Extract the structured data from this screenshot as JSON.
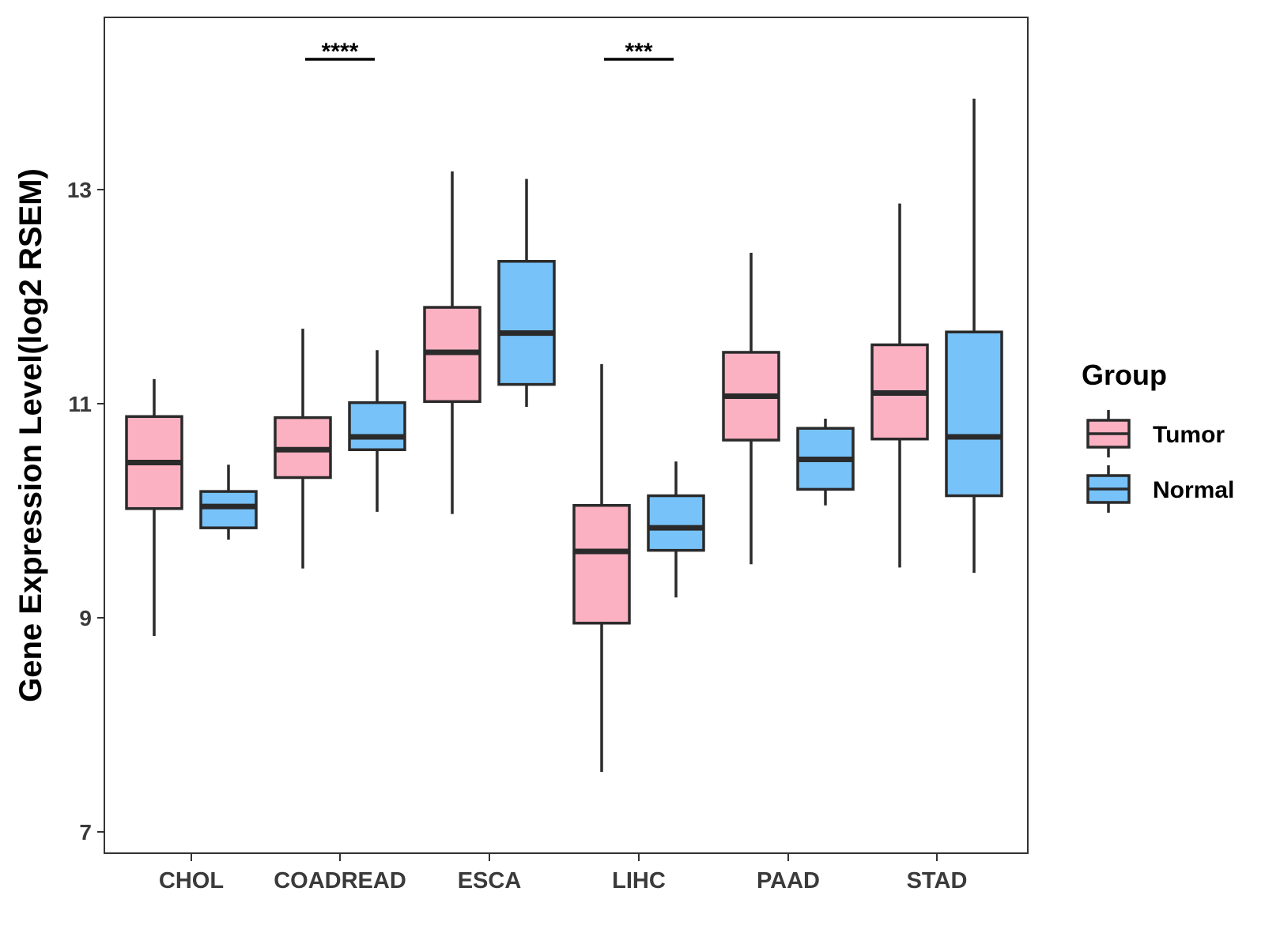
{
  "chart_data": {
    "type": "box",
    "title": "",
    "xlabel": "",
    "ylabel": "Gene Expression Level(log2 RSEM)",
    "ylim": [
      6.8,
      14.8
    ],
    "yticks": [
      7,
      9,
      11,
      13
    ],
    "yticks_labels": [
      "7",
      "9",
      "11",
      "13"
    ],
    "grid": false,
    "legend": {
      "title": "Group",
      "position": "right"
    },
    "categories": [
      "CHOL",
      "COADREAD",
      "ESCA",
      "LIHC",
      "PAAD",
      "STAD"
    ],
    "series": [
      {
        "name": "Tumor",
        "color": "#FBB1C2",
        "boxes": [
          {
            "whisker_low": 8.83,
            "q1": 10.02,
            "median": 10.45,
            "q3": 10.88,
            "whisker_high": 11.23
          },
          {
            "whisker_low": 9.46,
            "q1": 10.31,
            "median": 10.57,
            "q3": 10.87,
            "whisker_high": 11.7
          },
          {
            "whisker_low": 9.97,
            "q1": 11.02,
            "median": 11.48,
            "q3": 11.9,
            "whisker_high": 13.17
          },
          {
            "whisker_low": 7.56,
            "q1": 8.95,
            "median": 9.62,
            "q3": 10.05,
            "whisker_high": 11.37
          },
          {
            "whisker_low": 9.5,
            "q1": 10.66,
            "median": 11.07,
            "q3": 11.48,
            "whisker_high": 12.41
          },
          {
            "whisker_low": 9.47,
            "q1": 10.67,
            "median": 11.1,
            "q3": 11.55,
            "whisker_high": 12.87
          }
        ]
      },
      {
        "name": "Normal",
        "color": "#77C2F8",
        "boxes": [
          {
            "whisker_low": 9.73,
            "q1": 9.84,
            "median": 10.04,
            "q3": 10.18,
            "whisker_high": 10.43
          },
          {
            "whisker_low": 9.99,
            "q1": 10.57,
            "median": 10.69,
            "q3": 11.01,
            "whisker_high": 11.5
          },
          {
            "whisker_low": 10.97,
            "q1": 11.18,
            "median": 11.66,
            "q3": 12.33,
            "whisker_high": 13.1
          },
          {
            "whisker_low": 9.19,
            "q1": 9.63,
            "median": 9.84,
            "q3": 10.14,
            "whisker_high": 10.46
          },
          {
            "whisker_low": 10.05,
            "q1": 10.2,
            "median": 10.48,
            "q3": 10.77,
            "whisker_high": 10.86
          },
          {
            "whisker_low": 9.42,
            "q1": 10.14,
            "median": 10.69,
            "q3": 11.67,
            "whisker_high": 13.85
          }
        ]
      }
    ],
    "significance": [
      {
        "category": "COADREAD",
        "label": "****"
      },
      {
        "category": "LIHC",
        "label": "***"
      }
    ]
  },
  "colors": {
    "box_stroke": "#2a2a2a",
    "axis": "#333333"
  }
}
